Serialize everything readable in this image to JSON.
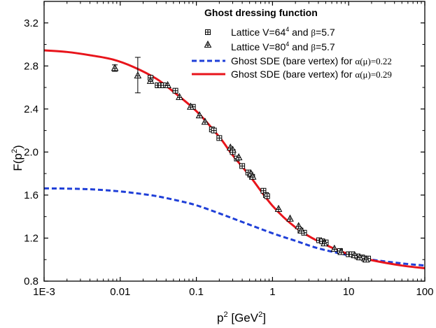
{
  "chart_data": {
    "type": "line",
    "x_scale": "log",
    "y_scale": "linear",
    "xlim": [
      0.001,
      100
    ],
    "ylim": [
      0.8,
      3.4
    ],
    "xticks": [
      0.001,
      0.01,
      0.1,
      1,
      10,
      100
    ],
    "xtick_labels": [
      "1E-3",
      "0.01",
      "0.1",
      "1",
      "10",
      "100"
    ],
    "yticks": [
      0.8,
      1.2,
      1.6,
      2.0,
      2.4,
      2.8,
      3.2
    ],
    "ytick_labels": [
      "0.8",
      "1.2",
      "1.6",
      "2.0",
      "2.4",
      "2.8",
      "3.2"
    ],
    "xlabel": {
      "base": "p",
      "sup": "2",
      "unit_open": " [GeV",
      "unit_sup": "2",
      "unit_close": "]"
    },
    "ylabel": {
      "base": "F(p",
      "sup": "2",
      "close": ")"
    },
    "grid": false,
    "legend": {
      "placement": "top-right",
      "title": "Ghost dressing function",
      "entries": [
        {
          "label_a": "Lattice V=64",
          "label_sup": "4",
          "label_b": " and ",
          "label_greek": "β",
          "label_c": "=5.7"
        },
        {
          "label_a": "Lattice V=80",
          "label_sup": "4",
          "label_b": " and ",
          "label_greek": "β",
          "label_c": "=5.7"
        },
        {
          "label_a": "Ghost SDE (bare vertex) for ",
          "label_alpha": "α(μ)=0.22"
        },
        {
          "label_a": "Ghost SDE (bare vertex) for ",
          "label_alpha": "α(μ)=0.29"
        }
      ]
    },
    "series": [
      {
        "marker": "square-plus",
        "color": "#000000",
        "points": [
          [
            0.025,
            2.69
          ],
          [
            0.031,
            2.62
          ],
          [
            0.034,
            2.62
          ],
          [
            0.037,
            2.62
          ],
          [
            0.053,
            2.57
          ],
          [
            0.09,
            2.42
          ],
          [
            0.16,
            2.21
          ],
          [
            0.17,
            2.2
          ],
          [
            0.2,
            2.13
          ],
          [
            0.3,
            2.0
          ],
          [
            0.34,
            1.94
          ],
          [
            0.4,
            1.87
          ],
          [
            0.48,
            1.81
          ],
          [
            0.51,
            1.79
          ],
          [
            0.54,
            1.77
          ],
          [
            0.76,
            1.64
          ],
          [
            0.82,
            1.6
          ],
          [
            0.85,
            1.59
          ],
          [
            2.33,
            1.27
          ],
          [
            2.6,
            1.25
          ],
          [
            4.1,
            1.18
          ],
          [
            4.5,
            1.17
          ],
          [
            5.0,
            1.16
          ],
          [
            7.7,
            1.08
          ],
          [
            10.0,
            1.05
          ],
          [
            11.0,
            1.05
          ],
          [
            13.0,
            1.03
          ],
          [
            15.0,
            1.02
          ],
          [
            16.0,
            1.01
          ],
          [
            18.0,
            1.01
          ]
        ]
      },
      {
        "marker": "triangle-plus",
        "color": "#000000",
        "points": [
          [
            0.0085,
            2.78
          ],
          [
            0.017,
            2.71
          ],
          [
            0.025,
            2.66
          ],
          [
            0.042,
            2.62
          ],
          [
            0.06,
            2.51
          ],
          [
            0.084,
            2.42
          ],
          [
            0.11,
            2.34
          ],
          [
            0.13,
            2.28
          ],
          [
            0.28,
            2.04
          ],
          [
            0.3,
            2.02
          ],
          [
            0.36,
            1.95
          ],
          [
            0.52,
            1.8
          ],
          [
            0.55,
            1.77
          ],
          [
            1.2,
            1.47
          ],
          [
            1.7,
            1.38
          ],
          [
            2.2,
            1.31
          ],
          [
            2.4,
            1.27
          ],
          [
            4.8,
            1.15
          ],
          [
            6.5,
            1.1
          ],
          [
            8.0,
            1.07
          ],
          [
            12.0,
            1.04
          ],
          [
            14.0,
            1.02
          ],
          [
            17.0,
            1.0
          ]
        ],
        "error_bars": [
          {
            "x": 0.0085,
            "y": 2.78,
            "low": 2.75,
            "high": 2.81
          },
          {
            "x": 0.017,
            "y": 2.71,
            "low": 2.55,
            "high": 2.88
          }
        ]
      },
      {
        "line": "dashed",
        "color": "#1f3fd8",
        "points": [
          [
            0.001,
            1.662
          ],
          [
            0.002,
            1.66
          ],
          [
            0.004,
            1.654
          ],
          [
            0.008,
            1.64
          ],
          [
            0.015,
            1.62
          ],
          [
            0.03,
            1.59
          ],
          [
            0.06,
            1.545
          ],
          [
            0.1,
            1.505
          ],
          [
            0.2,
            1.43
          ],
          [
            0.4,
            1.35
          ],
          [
            1.0,
            1.245
          ],
          [
            2.0,
            1.175
          ],
          [
            4.0,
            1.105
          ],
          [
            10.0,
            1.04
          ],
          [
            20.0,
            1.0
          ],
          [
            50.0,
            0.965
          ],
          [
            100.0,
            0.945
          ]
        ]
      },
      {
        "line": "solid",
        "color": "#e8141b",
        "points": [
          [
            0.001,
            2.945
          ],
          [
            0.002,
            2.93
          ],
          [
            0.004,
            2.9
          ],
          [
            0.008,
            2.86
          ],
          [
            0.015,
            2.79
          ],
          [
            0.03,
            2.68
          ],
          [
            0.05,
            2.56
          ],
          [
            0.1,
            2.38
          ],
          [
            0.2,
            2.14
          ],
          [
            0.3,
            1.97
          ],
          [
            0.5,
            1.78
          ],
          [
            1.0,
            1.5
          ],
          [
            2.0,
            1.3
          ],
          [
            4.0,
            1.17
          ],
          [
            10.0,
            1.05
          ],
          [
            20.0,
            0.995
          ],
          [
            50.0,
            0.945
          ],
          [
            100.0,
            0.92
          ]
        ]
      }
    ]
  }
}
